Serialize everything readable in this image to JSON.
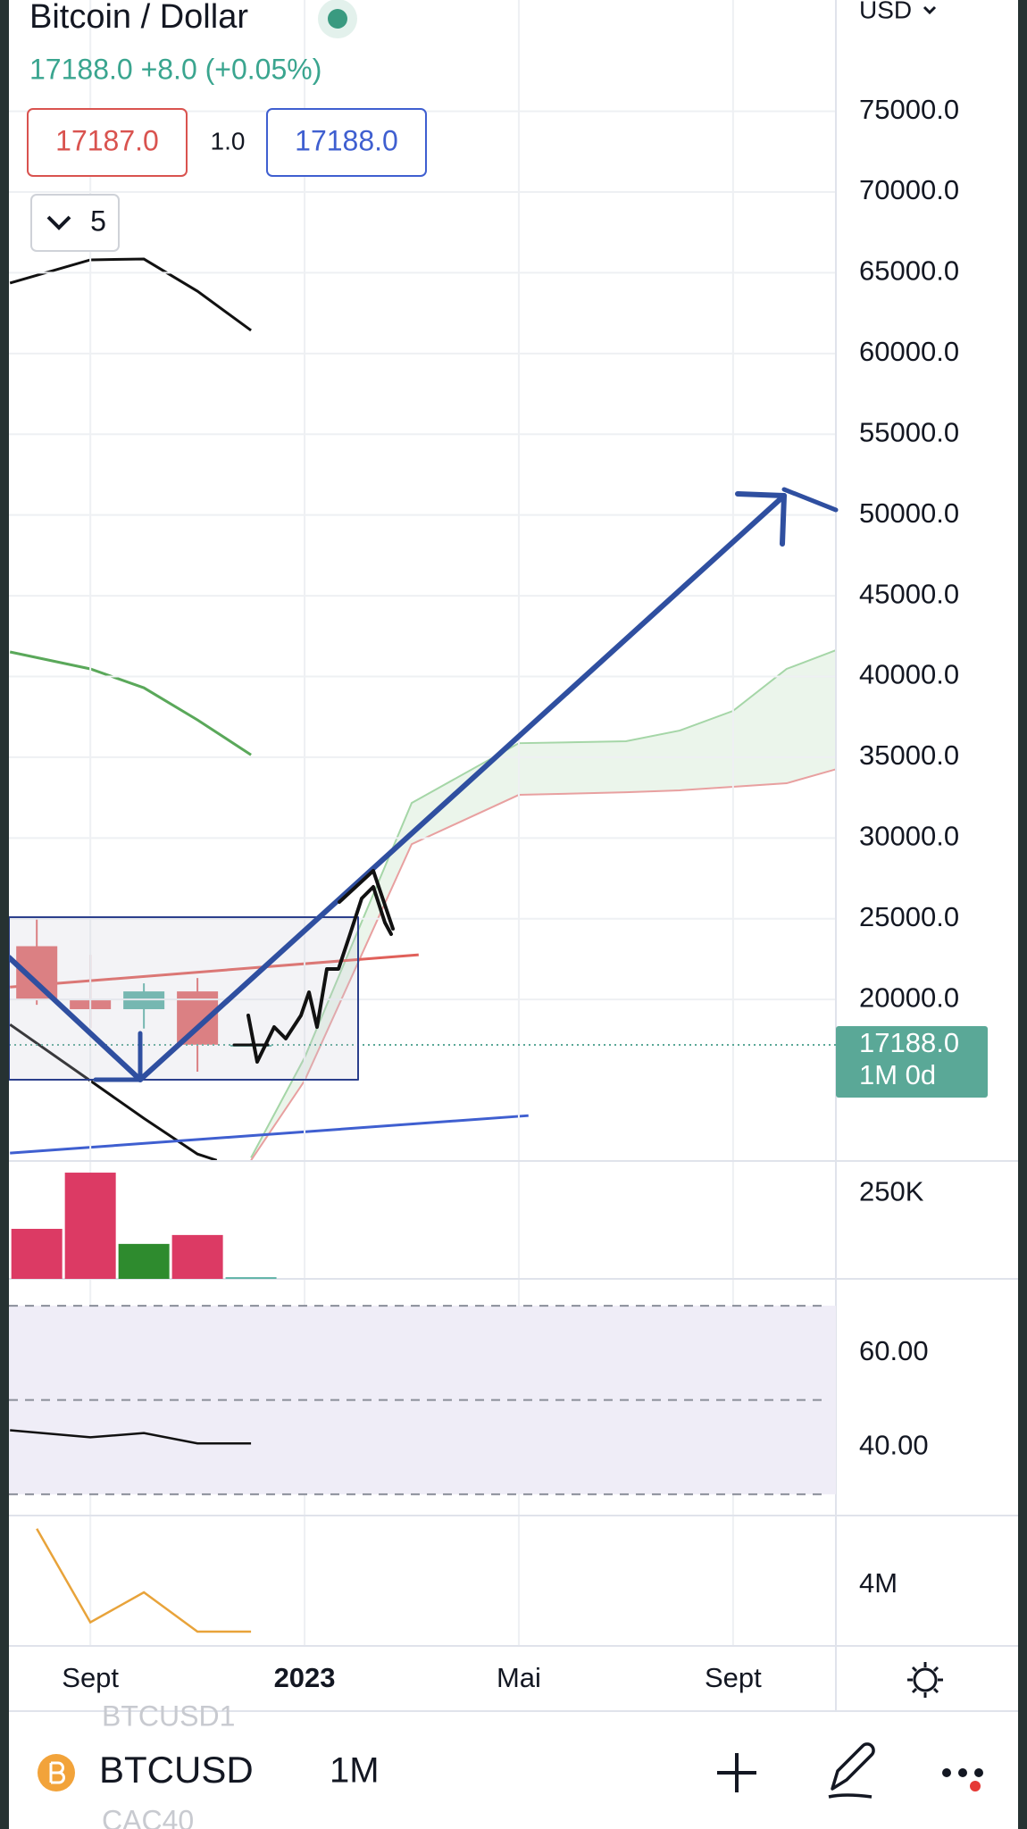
{
  "header": {
    "title": "Bitcoin / Dollar",
    "quote": "17188.0 +8.0 (+0.05%)",
    "bid": "17187.0",
    "spread": "1.0",
    "ask": "17188.0",
    "indicators_count": "5",
    "currency": "USD"
  },
  "chart_data": [
    {
      "type": "candlestick",
      "xlim": [
        -1.52,
        13.92
      ],
      "xticks": [
        {
          "value": 0,
          "label": "Sept"
        },
        {
          "value": 4,
          "label": "2023"
        },
        {
          "value": 8,
          "label": "Mai"
        },
        {
          "value": 12,
          "label": "Sept"
        }
      ],
      "ylim": [
        10000,
        82000
      ],
      "yticks": [
        {
          "value": 20000,
          "label": "20000.0"
        },
        {
          "value": 25000,
          "label": "25000.0"
        },
        {
          "value": 30000,
          "label": "30000.0"
        },
        {
          "value": 35000,
          "label": "35000.0"
        },
        {
          "value": 40000,
          "label": "40000.0"
        },
        {
          "value": 45000,
          "label": "45000.0"
        },
        {
          "value": 50000,
          "label": "50000.0"
        },
        {
          "value": 55000,
          "label": "55000.0"
        },
        {
          "value": 60000,
          "label": "60000.0"
        },
        {
          "value": 65000,
          "label": "65000.0"
        },
        {
          "value": 70000,
          "label": "70000.0"
        },
        {
          "value": 75000,
          "label": "75000.0"
        }
      ],
      "grid": true,
      "candles": {
        "x": [
          -1,
          0,
          1,
          2,
          3
        ],
        "open": [
          23300,
          20000,
          19400,
          20500,
          17180
        ],
        "high": [
          25030,
          22770,
          21000,
          21330,
          17300
        ],
        "low": [
          19670,
          18230,
          18200,
          15530,
          17100
        ],
        "close": [
          20000,
          19400,
          20500,
          17200,
          17188
        ]
      },
      "up_color": "#5fb3a7",
      "down_color": "#e06c6c",
      "series": [
        {
          "color": "#111111",
          "x": [
            -1.5,
            0,
            1,
            2,
            3
          ],
          "values": [
            64360,
            65800,
            65850,
            63860,
            61430
          ]
        },
        {
          "color": "#111111",
          "x": [
            -1.5,
            0,
            1,
            2,
            2.36
          ],
          "values": [
            18450,
            14970,
            12640,
            10430,
            10040
          ]
        },
        {
          "color": "#5aa85a",
          "x": [
            -1.5,
            0,
            1,
            2,
            3
          ],
          "values": [
            41520,
            40470,
            39300,
            37310,
            35150
          ]
        },
        {
          "color": "#e0605a",
          "x": [
            -1.5,
            6.13
          ],
          "values": [
            20770,
            22770
          ]
        },
        {
          "color": "#3f5fd0",
          "x": [
            -1.5,
            8.18
          ],
          "values": [
            10490,
            12810
          ]
        }
      ],
      "cloud": {
        "x": [
          3,
          4,
          6,
          8,
          10,
          11,
          12,
          13,
          14
        ],
        "upper": [
          10200,
          16400,
          32170,
          35870,
          35990,
          36650,
          37870,
          40470,
          41730
        ],
        "lower": [
          10040,
          14970,
          29620,
          32670,
          32830,
          32950,
          33170,
          33390,
          34330
        ],
        "fill": "#e6f2e6",
        "upper_color": "#a5d6a7",
        "lower_color": "#e8a0a0"
      },
      "last_price": {
        "value": 17188,
        "label": "17188.0"
      },
      "countdown": "1M 0d",
      "last_price_color": "#5aa897"
    },
    {
      "type": "bar",
      "x": [
        -1,
        0,
        1,
        2,
        3
      ],
      "values": [
        146000,
        310000,
        102000,
        128000,
        5000
      ],
      "colors": [
        "#dc3a64",
        "#dc3a64",
        "#2e8b2e",
        "#dc3a64",
        "#5fb3a7"
      ],
      "ylim": [
        0,
        344000
      ],
      "yticks": [
        {
          "value": 250000,
          "label": "250K"
        }
      ]
    },
    {
      "type": "line",
      "x": [
        -1.5,
        0,
        1,
        2,
        3
      ],
      "values": [
        43.6,
        42.1,
        43.0,
        40.8,
        40.8
      ],
      "color": "#111111",
      "ylim": [
        25.5,
        75.7
      ],
      "yticks": [
        {
          "value": 60,
          "label": "60.00"
        },
        {
          "value": 40,
          "label": "40.00"
        }
      ],
      "bands": [
        30,
        50,
        70
      ],
      "band_fill": "#efedf7"
    },
    {
      "type": "line",
      "x": [
        -1,
        0,
        1,
        2,
        3
      ],
      "values": [
        4790000,
        3480000,
        3900000,
        3350000,
        3350000
      ],
      "color": "#e8a33a",
      "ylim": [
        3150000,
        4975000
      ],
      "yticks": [
        {
          "value": 4000000,
          "label": "4M"
        }
      ]
    }
  ],
  "toolbar": {
    "symbol": "BTCUSD",
    "interval": "1M",
    "ghost_above": "BTCUSD1",
    "ghost_below": "CAC40"
  }
}
